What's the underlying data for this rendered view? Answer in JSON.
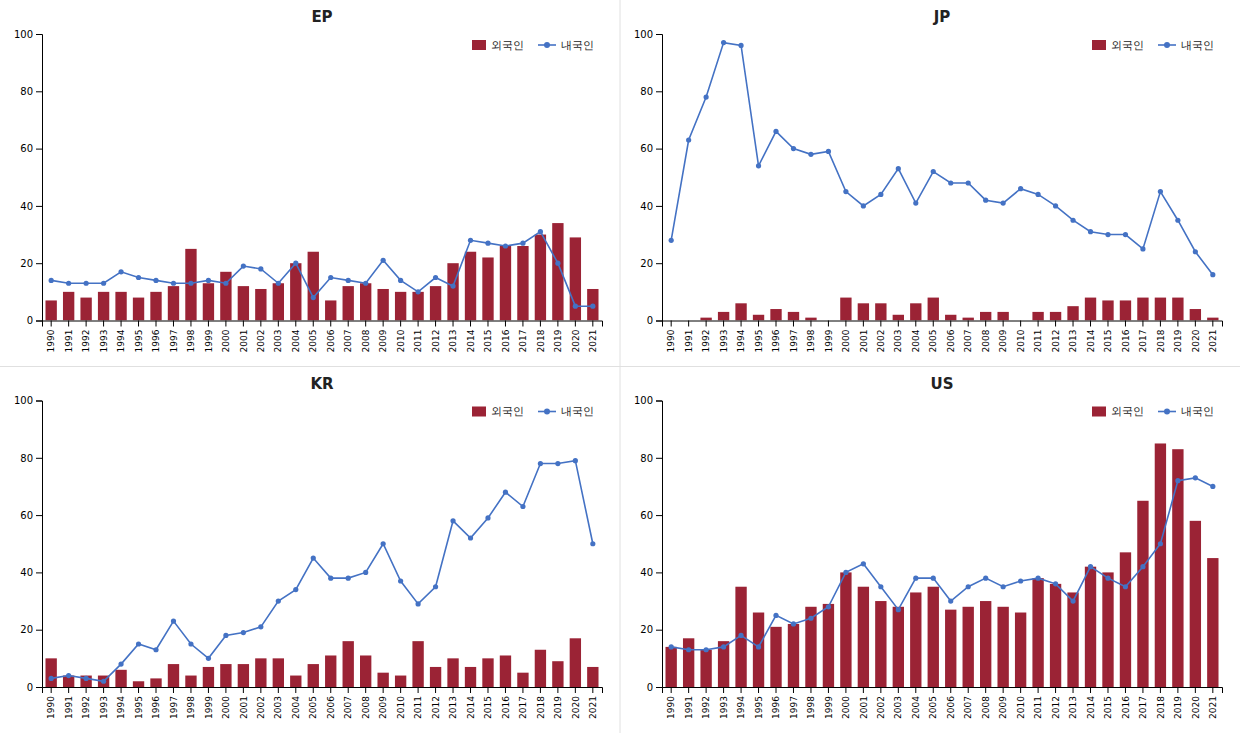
{
  "chart_data": [
    {
      "type": "bar",
      "title": "EP",
      "categories": [
        "1990",
        "1991",
        "1992",
        "1993",
        "1994",
        "1995",
        "1996",
        "1997",
        "1998",
        "1999",
        "2000",
        "2001",
        "2002",
        "2003",
        "2004",
        "2005",
        "2006",
        "2007",
        "2008",
        "2009",
        "2010",
        "2011",
        "2012",
        "2013",
        "2014",
        "2015",
        "2016",
        "2017",
        "2018",
        "2019",
        "2020",
        "2021"
      ],
      "series": [
        {
          "name": "외국인",
          "type": "bar",
          "color": "#9b2335",
          "values": [
            7,
            10,
            8,
            10,
            10,
            8,
            10,
            12,
            25,
            13,
            17,
            12,
            11,
            13,
            20,
            24,
            7,
            12,
            13,
            11,
            10,
            10,
            12,
            20,
            24,
            22,
            26,
            26,
            30,
            34,
            29,
            11
          ]
        },
        {
          "name": "내국인",
          "type": "line",
          "color": "#4472C4",
          "marker": "circle",
          "values": [
            14,
            13,
            13,
            13,
            17,
            15,
            14,
            13,
            13,
            14,
            13,
            19,
            18,
            13,
            20,
            8,
            15,
            14,
            13,
            21,
            14,
            10,
            15,
            12,
            28,
            27,
            26,
            27,
            31,
            20,
            5,
            5
          ]
        }
      ],
      "ylim": [
        0,
        100
      ],
      "yticks": [
        0,
        20,
        40,
        60,
        80,
        100
      ],
      "grid": false,
      "legend": "upper right"
    },
    {
      "type": "bar",
      "title": "JP",
      "categories": [
        "1990",
        "1991",
        "1992",
        "1993",
        "1994",
        "1995",
        "1996",
        "1997",
        "1998",
        "1999",
        "2000",
        "2001",
        "2002",
        "2003",
        "2004",
        "2005",
        "2006",
        "2007",
        "2008",
        "2009",
        "2010",
        "2011",
        "2012",
        "2013",
        "2014",
        "2015",
        "2016",
        "2017",
        "2018",
        "2019",
        "2020",
        "2021"
      ],
      "series": [
        {
          "name": "외국인",
          "type": "bar",
          "color": "#9b2335",
          "values": [
            0,
            0,
            1,
            3,
            6,
            2,
            4,
            3,
            1,
            0,
            8,
            6,
            6,
            2,
            6,
            8,
            2,
            1,
            3,
            3,
            0,
            3,
            3,
            5,
            8,
            7,
            7,
            8,
            8,
            8,
            4,
            1
          ]
        },
        {
          "name": "내국인",
          "type": "line",
          "color": "#4472C4",
          "marker": "circle",
          "values": [
            28,
            63,
            78,
            97,
            96,
            54,
            66,
            60,
            58,
            59,
            45,
            40,
            44,
            53,
            41,
            52,
            48,
            48,
            42,
            41,
            46,
            44,
            40,
            35,
            31,
            30,
            30,
            25,
            45,
            35,
            24,
            16
          ]
        }
      ],
      "ylim": [
        0,
        100
      ],
      "yticks": [
        0,
        20,
        40,
        60,
        80,
        100
      ],
      "grid": false,
      "legend": "upper right"
    },
    {
      "type": "bar",
      "title": "KR",
      "categories": [
        "1990",
        "1991",
        "1992",
        "1993",
        "1994",
        "1995",
        "1996",
        "1997",
        "1998",
        "1999",
        "2000",
        "2001",
        "2002",
        "2003",
        "2004",
        "2005",
        "2006",
        "2007",
        "2008",
        "2009",
        "2010",
        "2011",
        "2012",
        "2013",
        "2014",
        "2015",
        "2016",
        "2017",
        "2018",
        "2019",
        "2020",
        "2021"
      ],
      "series": [
        {
          "name": "외국인",
          "type": "bar",
          "color": "#9b2335",
          "values": [
            10,
            4,
            4,
            4,
            6,
            2,
            3,
            8,
            4,
            7,
            8,
            8,
            10,
            10,
            4,
            8,
            11,
            16,
            11,
            5,
            4,
            16,
            7,
            10,
            7,
            10,
            11,
            5,
            13,
            9,
            17,
            7
          ]
        },
        {
          "name": "내국인",
          "type": "line",
          "color": "#4472C4",
          "marker": "circle",
          "values": [
            3,
            4,
            3,
            2,
            8,
            15,
            13,
            23,
            15,
            10,
            18,
            19,
            21,
            30,
            34,
            45,
            38,
            38,
            40,
            50,
            37,
            29,
            35,
            58,
            52,
            59,
            68,
            63,
            78,
            78,
            79,
            50
          ]
        }
      ],
      "ylim": [
        0,
        100
      ],
      "yticks": [
        0,
        20,
        40,
        60,
        80,
        100
      ],
      "grid": false,
      "legend": "upper right"
    },
    {
      "type": "bar",
      "title": "US",
      "categories": [
        "1990",
        "1991",
        "1992",
        "1993",
        "1994",
        "1995",
        "1996",
        "1997",
        "1998",
        "1999",
        "2000",
        "2001",
        "2002",
        "2003",
        "2004",
        "2005",
        "2006",
        "2007",
        "2008",
        "2009",
        "2010",
        "2011",
        "2012",
        "2013",
        "2014",
        "2015",
        "2016",
        "2017",
        "2018",
        "2019",
        "2020",
        "2021"
      ],
      "series": [
        {
          "name": "외국인",
          "type": "bar",
          "color": "#9b2335",
          "values": [
            14,
            17,
            13,
            16,
            35,
            26,
            21,
            22,
            28,
            29,
            40,
            35,
            30,
            28,
            33,
            35,
            27,
            28,
            30,
            28,
            26,
            38,
            36,
            33,
            42,
            40,
            47,
            65,
            85,
            83,
            58,
            45
          ]
        },
        {
          "name": "내국인",
          "type": "line",
          "color": "#4472C4",
          "marker": "circle",
          "values": [
            14,
            13,
            13,
            14,
            18,
            14,
            25,
            22,
            24,
            28,
            40,
            43,
            35,
            27,
            38,
            38,
            30,
            35,
            38,
            35,
            37,
            38,
            36,
            30,
            42,
            38,
            35,
            42,
            50,
            72,
            73,
            70
          ]
        }
      ],
      "ylim": [
        0,
        100
      ],
      "yticks": [
        0,
        20,
        40,
        60,
        80,
        100
      ],
      "grid": false,
      "legend": "upper right"
    }
  ]
}
